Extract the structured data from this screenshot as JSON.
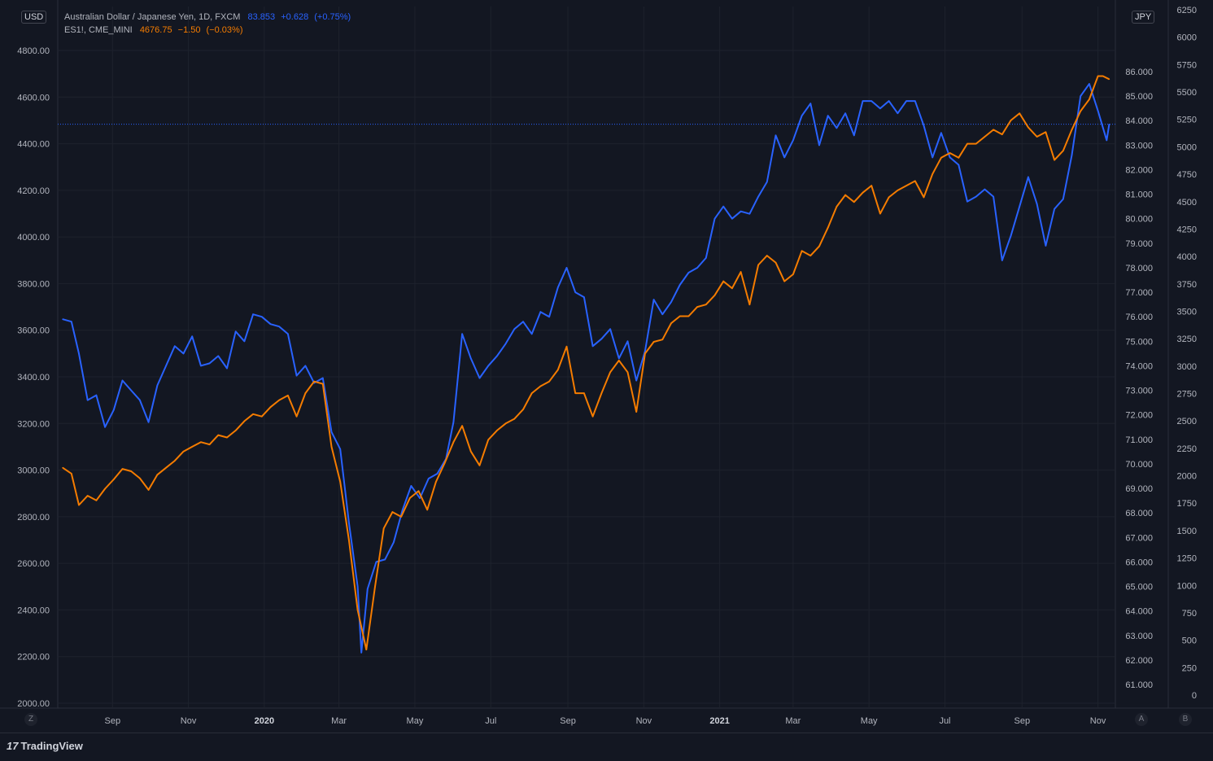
{
  "legend": {
    "s1": {
      "name": "Australian Dollar / Japanese Yen, 1D, FXCM",
      "value": "83.853",
      "change": "+0.628",
      "change_pct": "(+0.75%)"
    },
    "s2": {
      "name": "ES1!, CME_MINI",
      "value": "4676.75",
      "change": "−1.50",
      "change_pct": "(−0.03%)"
    }
  },
  "badges": {
    "left": "USD",
    "right": "JPY"
  },
  "footer": {
    "brand": "TradingView",
    "brand_mark": "17",
    "btn_z": "Z",
    "btn_a": "A",
    "btn_b": "B"
  },
  "colors": {
    "bg": "#131722",
    "grid": "#1e222d",
    "axis_text": "#b2b5be",
    "audjpy": "#2962ff",
    "es": "#f57c00"
  },
  "chart_data": {
    "type": "line",
    "x_ticks": [
      "Sep",
      "Nov",
      "2020",
      "Mar",
      "May",
      "Jul",
      "Sep",
      "Nov",
      "2021",
      "Mar",
      "May",
      "Jul",
      "Sep",
      "Nov"
    ],
    "x_ticks_bold": [
      "2020",
      "2021"
    ],
    "axis_left": {
      "label": "USD",
      "ticks": [
        "4800.00",
        "4600.00",
        "4400.00",
        "4200.00",
        "4000.00",
        "3800.00",
        "3600.00",
        "3400.00",
        "3200.00",
        "3000.00",
        "2800.00",
        "2600.00",
        "2400.00",
        "2200.00",
        "2000.00"
      ],
      "range": [
        2000,
        4800
      ]
    },
    "axis_mid": {
      "label": "JPY",
      "ticks": [
        "86.000",
        "85.000",
        "84.000",
        "83.000",
        "82.000",
        "81.000",
        "80.000",
        "79.000",
        "78.000",
        "77.000",
        "76.000",
        "75.000",
        "74.000",
        "73.000",
        "72.000",
        "71.000",
        "70.000",
        "69.000",
        "68.000",
        "67.000",
        "66.000",
        "65.000",
        "64.000",
        "63.000",
        "62.000",
        "61.000"
      ],
      "range": [
        61,
        86
      ]
    },
    "axis_right": {
      "ticks": [
        "6250",
        "6000",
        "5750",
        "5500",
        "5250",
        "5000",
        "4750",
        "4500",
        "4250",
        "4000",
        "3750",
        "3500",
        "3250",
        "3000",
        "2750",
        "2500",
        "2250",
        "2000",
        "1750",
        "1500",
        "1250",
        "1000",
        "750",
        "500",
        "250",
        "0"
      ],
      "range": [
        0,
        6250
      ]
    },
    "price_line": {
      "value": 83.853
    },
    "series": [
      {
        "name": "Australian Dollar / Japanese Yen, 1D, FXCM",
        "axis": "JPY",
        "color": "#2962ff",
        "points": [
          [
            "2019-07-23",
            75.9
          ],
          [
            "2019-07-30",
            75.8
          ],
          [
            "2019-08-05",
            74.5
          ],
          [
            "2019-08-12",
            72.6
          ],
          [
            "2019-08-19",
            72.8
          ],
          [
            "2019-08-26",
            71.5
          ],
          [
            "2019-09-02",
            72.2
          ],
          [
            "2019-09-09",
            73.4
          ],
          [
            "2019-09-16",
            73.0
          ],
          [
            "2019-09-23",
            72.6
          ],
          [
            "2019-09-30",
            71.7
          ],
          [
            "2019-10-07",
            73.2
          ],
          [
            "2019-10-14",
            74.0
          ],
          [
            "2019-10-21",
            74.8
          ],
          [
            "2019-10-28",
            74.5
          ],
          [
            "2019-11-04",
            75.2
          ],
          [
            "2019-11-11",
            74.0
          ],
          [
            "2019-11-18",
            74.1
          ],
          [
            "2019-11-25",
            74.4
          ],
          [
            "2019-12-02",
            73.9
          ],
          [
            "2019-12-09",
            75.4
          ],
          [
            "2019-12-16",
            75.0
          ],
          [
            "2019-12-23",
            76.1
          ],
          [
            "2019-12-30",
            76.0
          ],
          [
            "2020-01-06",
            75.7
          ],
          [
            "2020-01-13",
            75.6
          ],
          [
            "2020-01-20",
            75.3
          ],
          [
            "2020-01-27",
            73.6
          ],
          [
            "2020-02-03",
            74.0
          ],
          [
            "2020-02-10",
            73.3
          ],
          [
            "2020-02-17",
            73.5
          ],
          [
            "2020-02-24",
            71.3
          ],
          [
            "2020-03-02",
            70.6
          ],
          [
            "2020-03-09",
            67.6
          ],
          [
            "2020-03-16",
            65.0
          ],
          [
            "2020-03-19",
            62.3
          ],
          [
            "2020-03-24",
            64.9
          ],
          [
            "2020-03-31",
            66.0
          ],
          [
            "2020-04-07",
            66.1
          ],
          [
            "2020-04-14",
            66.8
          ],
          [
            "2020-04-21",
            68.1
          ],
          [
            "2020-04-28",
            69.1
          ],
          [
            "2020-05-05",
            68.6
          ],
          [
            "2020-05-12",
            69.4
          ],
          [
            "2020-05-19",
            69.6
          ],
          [
            "2020-05-26",
            70.2
          ],
          [
            "2020-06-01",
            71.7
          ],
          [
            "2020-06-08",
            75.3
          ],
          [
            "2020-06-15",
            74.3
          ],
          [
            "2020-06-22",
            73.5
          ],
          [
            "2020-06-29",
            74.0
          ],
          [
            "2020-07-06",
            74.4
          ],
          [
            "2020-07-13",
            74.9
          ],
          [
            "2020-07-20",
            75.5
          ],
          [
            "2020-07-27",
            75.8
          ],
          [
            "2020-08-03",
            75.3
          ],
          [
            "2020-08-10",
            76.2
          ],
          [
            "2020-08-17",
            76.0
          ],
          [
            "2020-08-24",
            77.2
          ],
          [
            "2020-08-31",
            78.0
          ],
          [
            "2020-09-07",
            77.0
          ],
          [
            "2020-09-14",
            76.8
          ],
          [
            "2020-09-21",
            74.8
          ],
          [
            "2020-09-28",
            75.1
          ],
          [
            "2020-10-05",
            75.5
          ],
          [
            "2020-10-12",
            74.3
          ],
          [
            "2020-10-19",
            75.0
          ],
          [
            "2020-10-26",
            73.4
          ],
          [
            "2020-11-02",
            74.6
          ],
          [
            "2020-11-09",
            76.7
          ],
          [
            "2020-11-16",
            76.1
          ],
          [
            "2020-11-23",
            76.6
          ],
          [
            "2020-11-30",
            77.3
          ],
          [
            "2020-12-07",
            77.8
          ],
          [
            "2020-12-14",
            78.0
          ],
          [
            "2020-12-21",
            78.4
          ],
          [
            "2020-12-28",
            80.0
          ],
          [
            "2021-01-04",
            80.5
          ],
          [
            "2021-01-11",
            80.0
          ],
          [
            "2021-01-18",
            80.3
          ],
          [
            "2021-01-25",
            80.2
          ],
          [
            "2021-02-01",
            80.9
          ],
          [
            "2021-02-08",
            81.5
          ],
          [
            "2021-02-15",
            83.4
          ],
          [
            "2021-02-22",
            82.5
          ],
          [
            "2021-03-01",
            83.2
          ],
          [
            "2021-03-08",
            84.2
          ],
          [
            "2021-03-15",
            84.7
          ],
          [
            "2021-03-22",
            83.0
          ],
          [
            "2021-03-29",
            84.2
          ],
          [
            "2021-04-05",
            83.7
          ],
          [
            "2021-04-12",
            84.3
          ],
          [
            "2021-04-19",
            83.4
          ],
          [
            "2021-04-26",
            84.8
          ],
          [
            "2021-05-03",
            84.8
          ],
          [
            "2021-05-10",
            84.5
          ],
          [
            "2021-05-17",
            84.8
          ],
          [
            "2021-05-24",
            84.3
          ],
          [
            "2021-05-31",
            84.8
          ],
          [
            "2021-06-07",
            84.8
          ],
          [
            "2021-06-14",
            83.8
          ],
          [
            "2021-06-21",
            82.5
          ],
          [
            "2021-06-28",
            83.5
          ],
          [
            "2021-07-05",
            82.5
          ],
          [
            "2021-07-12",
            82.2
          ],
          [
            "2021-07-19",
            80.7
          ],
          [
            "2021-07-26",
            80.9
          ],
          [
            "2021-08-02",
            81.2
          ],
          [
            "2021-08-09",
            80.9
          ],
          [
            "2021-08-16",
            78.3
          ],
          [
            "2021-08-23",
            79.3
          ],
          [
            "2021-08-30",
            80.5
          ],
          [
            "2021-09-06",
            81.7
          ],
          [
            "2021-09-13",
            80.6
          ],
          [
            "2021-09-20",
            78.9
          ],
          [
            "2021-09-27",
            80.4
          ],
          [
            "2021-10-04",
            80.8
          ],
          [
            "2021-10-11",
            82.6
          ],
          [
            "2021-10-18",
            85.0
          ],
          [
            "2021-10-25",
            85.5
          ],
          [
            "2021-11-01",
            84.4
          ],
          [
            "2021-11-08",
            83.2
          ],
          [
            "2021-11-10",
            83.85
          ]
        ]
      },
      {
        "name": "ES1!, CME_MINI",
        "axis": "USD",
        "color": "#f57c00",
        "points": [
          [
            "2019-07-23",
            3010
          ],
          [
            "2019-07-30",
            2985
          ],
          [
            "2019-08-05",
            2850
          ],
          [
            "2019-08-12",
            2890
          ],
          [
            "2019-08-19",
            2870
          ],
          [
            "2019-08-26",
            2920
          ],
          [
            "2019-09-02",
            2960
          ],
          [
            "2019-09-09",
            3005
          ],
          [
            "2019-09-16",
            2995
          ],
          [
            "2019-09-23",
            2965
          ],
          [
            "2019-09-30",
            2915
          ],
          [
            "2019-10-07",
            2980
          ],
          [
            "2019-10-14",
            3010
          ],
          [
            "2019-10-21",
            3040
          ],
          [
            "2019-10-28",
            3080
          ],
          [
            "2019-11-04",
            3100
          ],
          [
            "2019-11-11",
            3120
          ],
          [
            "2019-11-18",
            3110
          ],
          [
            "2019-11-25",
            3150
          ],
          [
            "2019-12-02",
            3140
          ],
          [
            "2019-12-09",
            3170
          ],
          [
            "2019-12-16",
            3210
          ],
          [
            "2019-12-23",
            3240
          ],
          [
            "2019-12-30",
            3230
          ],
          [
            "2020-01-06",
            3270
          ],
          [
            "2020-01-13",
            3300
          ],
          [
            "2020-01-20",
            3320
          ],
          [
            "2020-01-27",
            3230
          ],
          [
            "2020-02-03",
            3330
          ],
          [
            "2020-02-10",
            3380
          ],
          [
            "2020-02-17",
            3370
          ],
          [
            "2020-02-24",
            3100
          ],
          [
            "2020-03-02",
            2950
          ],
          [
            "2020-03-09",
            2700
          ],
          [
            "2020-03-16",
            2400
          ],
          [
            "2020-03-23",
            2230
          ],
          [
            "2020-03-30",
            2500
          ],
          [
            "2020-04-06",
            2750
          ],
          [
            "2020-04-13",
            2820
          ],
          [
            "2020-04-20",
            2800
          ],
          [
            "2020-04-27",
            2880
          ],
          [
            "2020-05-04",
            2910
          ],
          [
            "2020-05-11",
            2830
          ],
          [
            "2020-05-18",
            2950
          ],
          [
            "2020-05-25",
            3030
          ],
          [
            "2020-06-01",
            3120
          ],
          [
            "2020-06-08",
            3190
          ],
          [
            "2020-06-15",
            3080
          ],
          [
            "2020-06-22",
            3020
          ],
          [
            "2020-06-29",
            3130
          ],
          [
            "2020-07-06",
            3170
          ],
          [
            "2020-07-13",
            3200
          ],
          [
            "2020-07-20",
            3220
          ],
          [
            "2020-07-27",
            3260
          ],
          [
            "2020-08-03",
            3330
          ],
          [
            "2020-08-10",
            3360
          ],
          [
            "2020-08-17",
            3380
          ],
          [
            "2020-08-24",
            3430
          ],
          [
            "2020-08-31",
            3530
          ],
          [
            "2020-09-07",
            3330
          ],
          [
            "2020-09-14",
            3330
          ],
          [
            "2020-09-21",
            3230
          ],
          [
            "2020-09-28",
            3330
          ],
          [
            "2020-10-05",
            3420
          ],
          [
            "2020-10-12",
            3470
          ],
          [
            "2020-10-19",
            3420
          ],
          [
            "2020-10-26",
            3250
          ],
          [
            "2020-11-02",
            3500
          ],
          [
            "2020-11-09",
            3550
          ],
          [
            "2020-11-16",
            3560
          ],
          [
            "2020-11-23",
            3630
          ],
          [
            "2020-11-30",
            3660
          ],
          [
            "2020-12-07",
            3660
          ],
          [
            "2020-12-14",
            3700
          ],
          [
            "2020-12-21",
            3710
          ],
          [
            "2020-12-28",
            3750
          ],
          [
            "2021-01-04",
            3810
          ],
          [
            "2021-01-11",
            3780
          ],
          [
            "2021-01-18",
            3850
          ],
          [
            "2021-01-25",
            3710
          ],
          [
            "2021-02-01",
            3880
          ],
          [
            "2021-02-08",
            3920
          ],
          [
            "2021-02-15",
            3890
          ],
          [
            "2021-02-22",
            3810
          ],
          [
            "2021-03-01",
            3840
          ],
          [
            "2021-03-08",
            3940
          ],
          [
            "2021-03-15",
            3920
          ],
          [
            "2021-03-22",
            3960
          ],
          [
            "2021-03-29",
            4040
          ],
          [
            "2021-04-05",
            4130
          ],
          [
            "2021-04-12",
            4180
          ],
          [
            "2021-04-19",
            4150
          ],
          [
            "2021-04-26",
            4190
          ],
          [
            "2021-05-03",
            4220
          ],
          [
            "2021-05-10",
            4100
          ],
          [
            "2021-05-17",
            4170
          ],
          [
            "2021-05-24",
            4200
          ],
          [
            "2021-05-31",
            4220
          ],
          [
            "2021-06-07",
            4240
          ],
          [
            "2021-06-14",
            4170
          ],
          [
            "2021-06-21",
            4270
          ],
          [
            "2021-06-28",
            4340
          ],
          [
            "2021-07-05",
            4360
          ],
          [
            "2021-07-12",
            4340
          ],
          [
            "2021-07-19",
            4400
          ],
          [
            "2021-07-26",
            4400
          ],
          [
            "2021-08-02",
            4430
          ],
          [
            "2021-08-09",
            4460
          ],
          [
            "2021-08-16",
            4440
          ],
          [
            "2021-08-23",
            4500
          ],
          [
            "2021-08-30",
            4530
          ],
          [
            "2021-09-06",
            4470
          ],
          [
            "2021-09-13",
            4430
          ],
          [
            "2021-09-20",
            4450
          ],
          [
            "2021-09-27",
            4330
          ],
          [
            "2021-10-04",
            4370
          ],
          [
            "2021-10-11",
            4460
          ],
          [
            "2021-10-18",
            4540
          ],
          [
            "2021-10-25",
            4590
          ],
          [
            "2021-11-01",
            4690
          ],
          [
            "2021-11-05",
            4690
          ],
          [
            "2021-11-10",
            4676.75
          ]
        ]
      }
    ]
  }
}
